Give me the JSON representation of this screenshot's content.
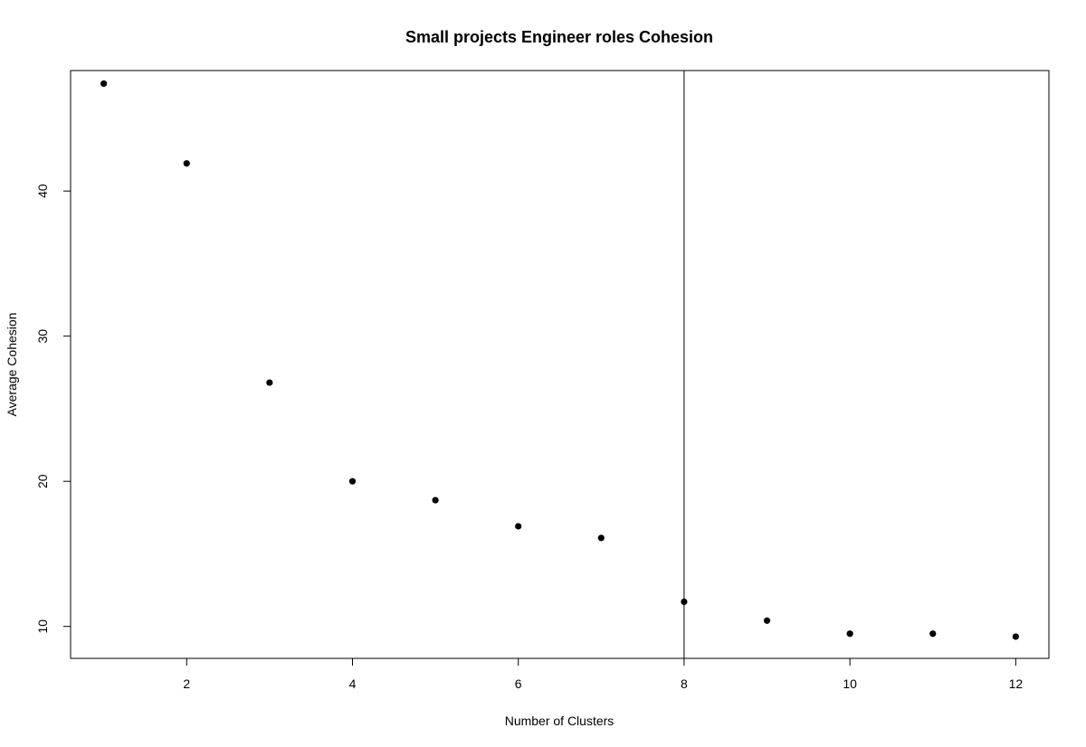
{
  "chart_data": {
    "type": "scatter",
    "title": "Small projects Engineer roles Cohesion",
    "xlabel": "Number of Clusters",
    "ylabel": "Average Cohesion",
    "xlim": [
      0.6,
      12.4
    ],
    "ylim": [
      7.8,
      48.3
    ],
    "xticks": [
      2,
      4,
      6,
      8,
      10,
      12
    ],
    "yticks": [
      10,
      20,
      30,
      40
    ],
    "points": [
      {
        "x": 1,
        "y": 47.4
      },
      {
        "x": 2,
        "y": 41.9
      },
      {
        "x": 3,
        "y": 26.8
      },
      {
        "x": 4,
        "y": 20.0
      },
      {
        "x": 5,
        "y": 18.7
      },
      {
        "x": 6,
        "y": 16.9
      },
      {
        "x": 7,
        "y": 16.1
      },
      {
        "x": 8,
        "y": 11.7
      },
      {
        "x": 9,
        "y": 10.4
      },
      {
        "x": 10,
        "y": 9.5
      },
      {
        "x": 11,
        "y": 9.5
      },
      {
        "x": 12,
        "y": 9.3
      }
    ],
    "vline": 8,
    "grid": false,
    "legend": "none",
    "colors": {
      "points": "#000000",
      "axes": "#000000",
      "vline": "#000000"
    }
  }
}
